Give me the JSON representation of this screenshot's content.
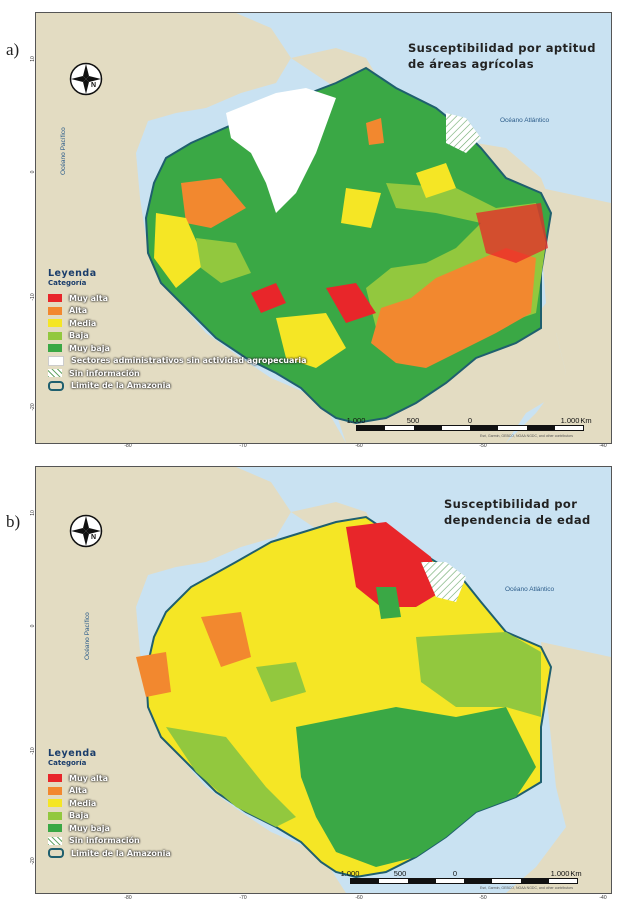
{
  "panels": [
    {
      "letter": "a)",
      "title_line1": "Susceptibilidad por aptitud",
      "title_line2": "de áreas agrícolas",
      "ocean_atlantic": "Océano Atlántico",
      "ocean_pacific": "Océano Pacífico",
      "credits": "Esri, Garmin, GEBCO, NOAA NGDC, and other contributors"
    },
    {
      "letter": "b)",
      "title_line1": "Susceptibilidad por",
      "title_line2": "dependencia de edad",
      "ocean_atlantic": "Océano Atlántico",
      "ocean_pacific": "Océano Pacífico",
      "credits": "Esri, Garmin, GEBCO, NOAA NGDC, and other contributors"
    }
  ],
  "legend": {
    "heading": "Leyenda",
    "subheading": "Categoría",
    "categories": [
      {
        "label": "Muy alta",
        "color": "#e8262a"
      },
      {
        "label": "Alta",
        "color": "#f2882f"
      },
      {
        "label": "Media",
        "color": "#f5e625"
      },
      {
        "label": "Baja",
        "color": "#92c83e"
      },
      {
        "label": "Muy baja",
        "color": "#3aa845"
      }
    ],
    "sin_actividad": "Sectores administrativos sin actividad agropecuaria",
    "sin_info": "Sin información",
    "limite": "Limite de la Amazonia"
  },
  "longitude_ticks": [
    "-80",
    "-70",
    "-60",
    "-50",
    "-40"
  ],
  "latitude_ticks": [
    "10",
    "0",
    "-10",
    "-20"
  ],
  "scale": {
    "labels": [
      "1.000",
      "500",
      "0",
      "1.000"
    ],
    "unit": "Km"
  },
  "north_label": "N",
  "colors": {
    "ocean": "#c9e2f2",
    "land": "#e3dcc2",
    "boundary": "#1f5f6e"
  }
}
